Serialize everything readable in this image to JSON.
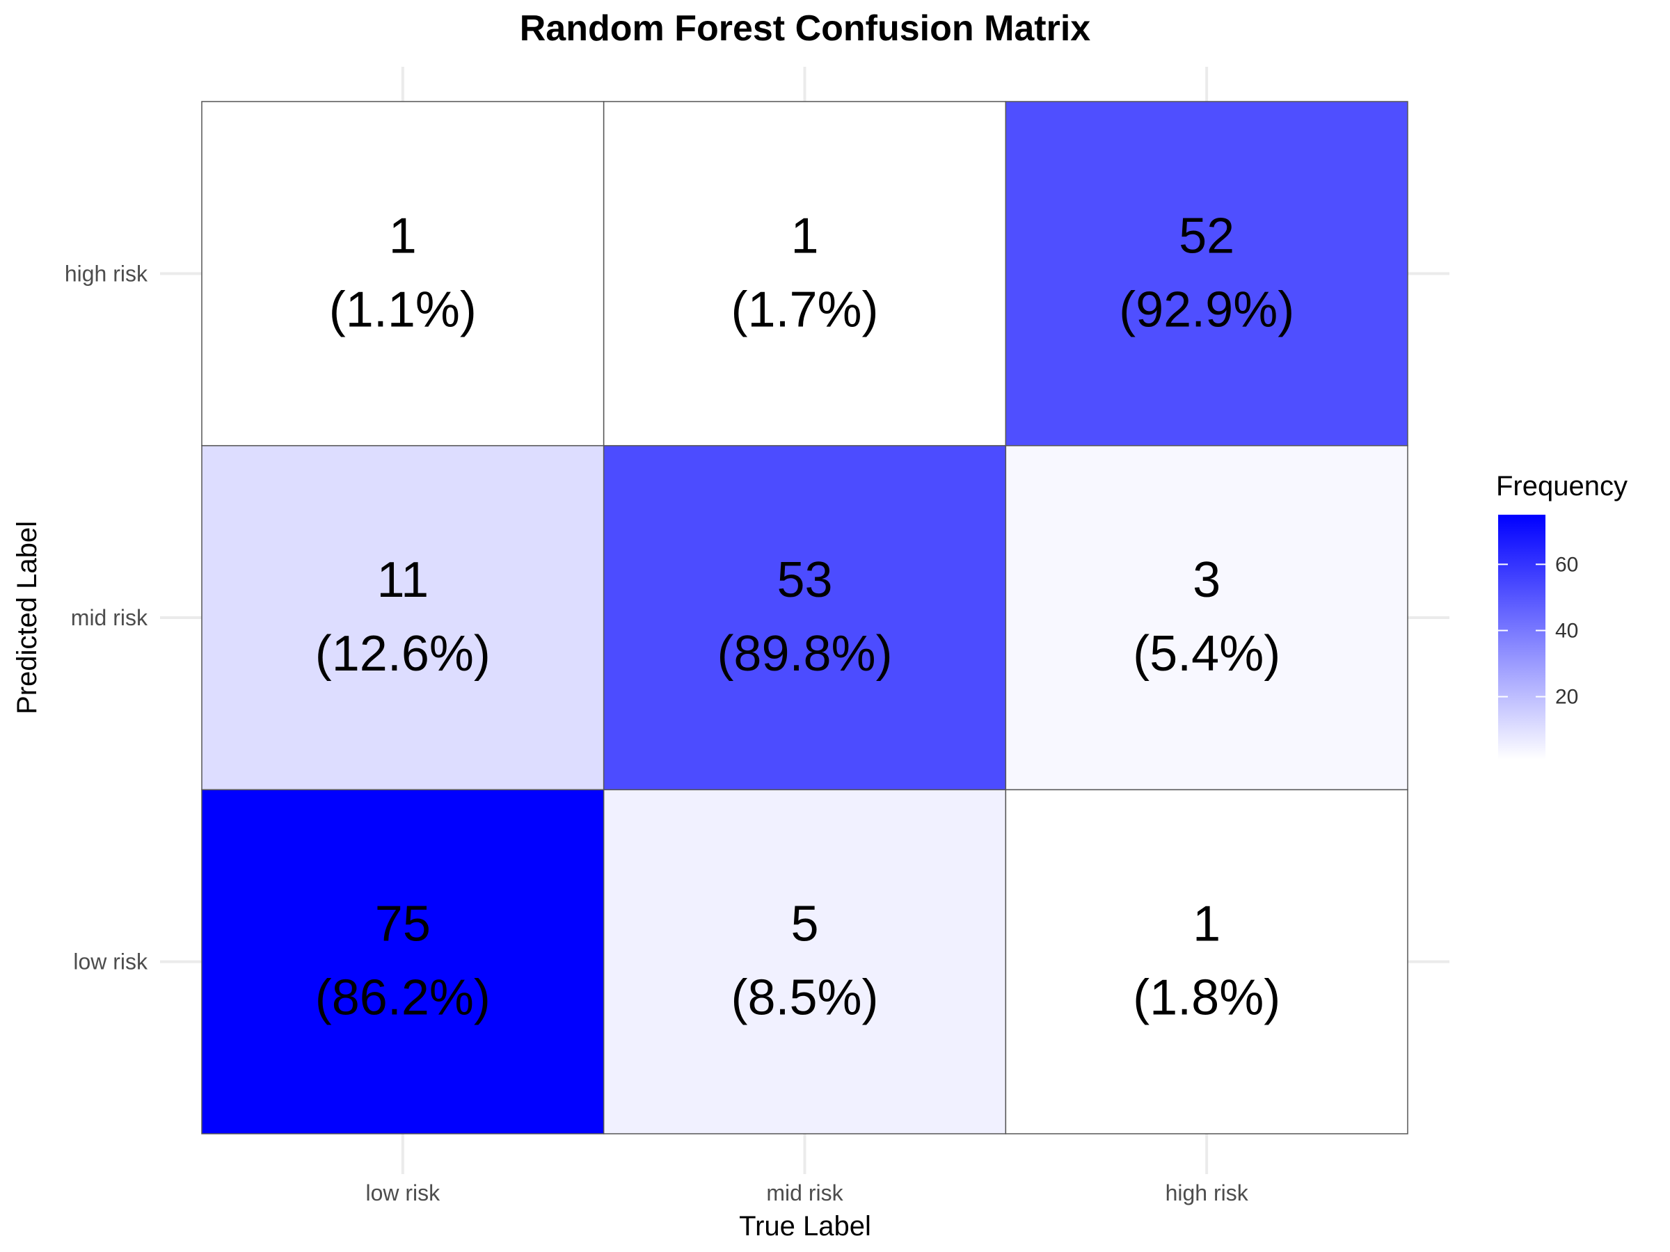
{
  "chart_data": {
    "type": "heatmap",
    "title": "Random Forest Confusion Matrix",
    "xlabel": "True Label",
    "ylabel": "Predicted Label",
    "x_categories": [
      "low risk",
      "mid risk",
      "high risk"
    ],
    "y_categories": [
      "low risk",
      "mid risk",
      "high risk"
    ],
    "cells": [
      {
        "true": "low risk",
        "predicted": "low risk",
        "count": 75,
        "percent": "(86.2%)"
      },
      {
        "true": "mid risk",
        "predicted": "low risk",
        "count": 5,
        "percent": "(8.5%)"
      },
      {
        "true": "high risk",
        "predicted": "low risk",
        "count": 1,
        "percent": "(1.8%)"
      },
      {
        "true": "low risk",
        "predicted": "mid risk",
        "count": 11,
        "percent": "(12.6%)"
      },
      {
        "true": "mid risk",
        "predicted": "mid risk",
        "count": 53,
        "percent": "(89.8%)"
      },
      {
        "true": "high risk",
        "predicted": "mid risk",
        "count": 3,
        "percent": "(5.4%)"
      },
      {
        "true": "low risk",
        "predicted": "high risk",
        "count": 1,
        "percent": "(1.1%)"
      },
      {
        "true": "mid risk",
        "predicted": "high risk",
        "count": 1,
        "percent": "(1.7%)"
      },
      {
        "true": "high risk",
        "predicted": "high risk",
        "count": 52,
        "percent": "(92.9%)"
      }
    ],
    "legend": {
      "title": "Frequency",
      "ticks": [
        20,
        40,
        60
      ],
      "range": [
        1,
        75
      ],
      "low_color": "#ffffff",
      "high_color": "#0000ff",
      "placement": "right"
    },
    "grid": true
  }
}
